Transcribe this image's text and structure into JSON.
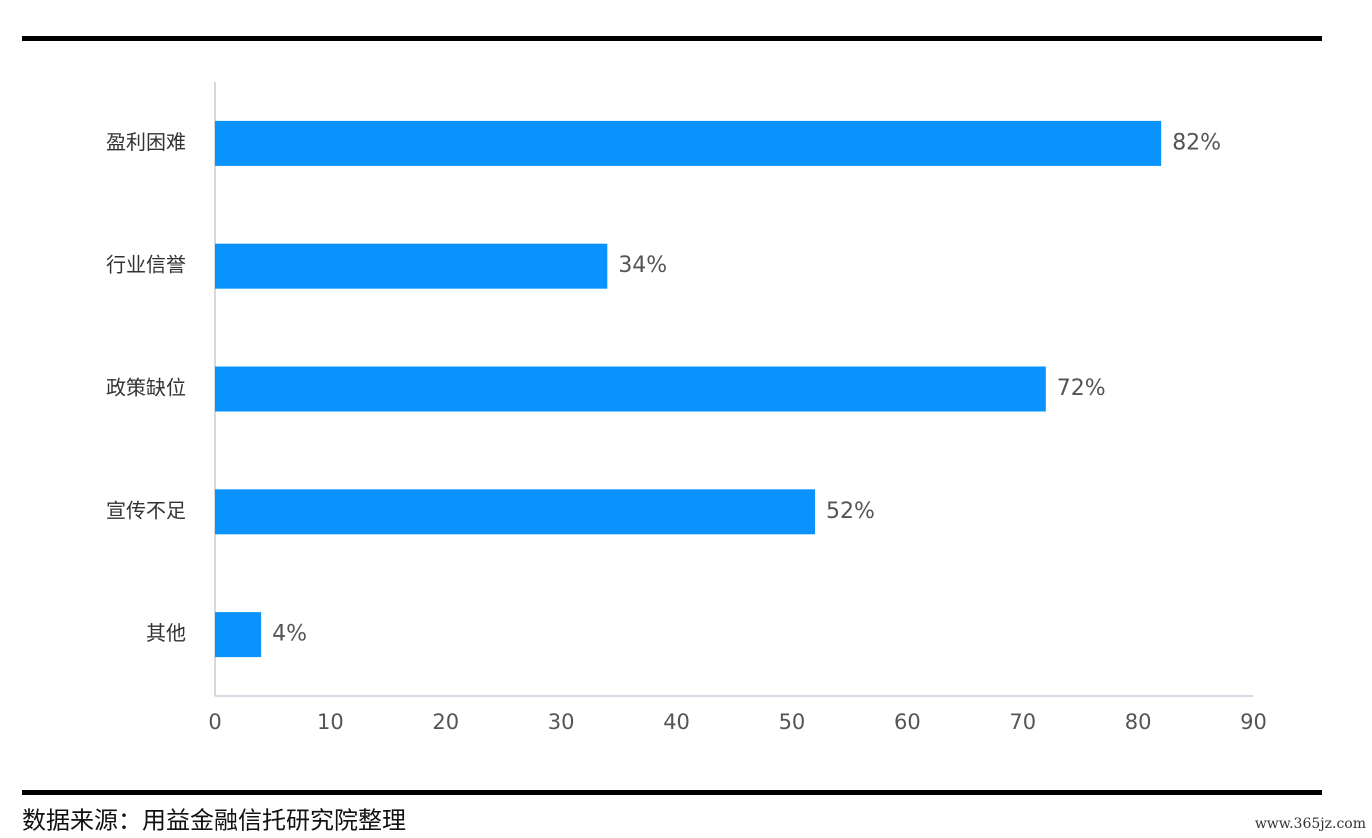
{
  "chart_data": {
    "type": "bar",
    "orientation": "horizontal",
    "categories": [
      "盈利困难",
      "行业信誉",
      "政策缺位",
      "宣传不足",
      "其他"
    ],
    "values": [
      82,
      34,
      72,
      52,
      4
    ],
    "value_labels": [
      "82%",
      "34%",
      "72%",
      "52%",
      "4%"
    ],
    "color": "#0a93fc",
    "xlim": [
      0,
      90
    ],
    "xticks": [
      0,
      10,
      20,
      30,
      40,
      50,
      60,
      70,
      80,
      90
    ],
    "grid": false,
    "source": "数据来源：用益金融信托研究院整理",
    "watermark": "www.365jz.com"
  }
}
